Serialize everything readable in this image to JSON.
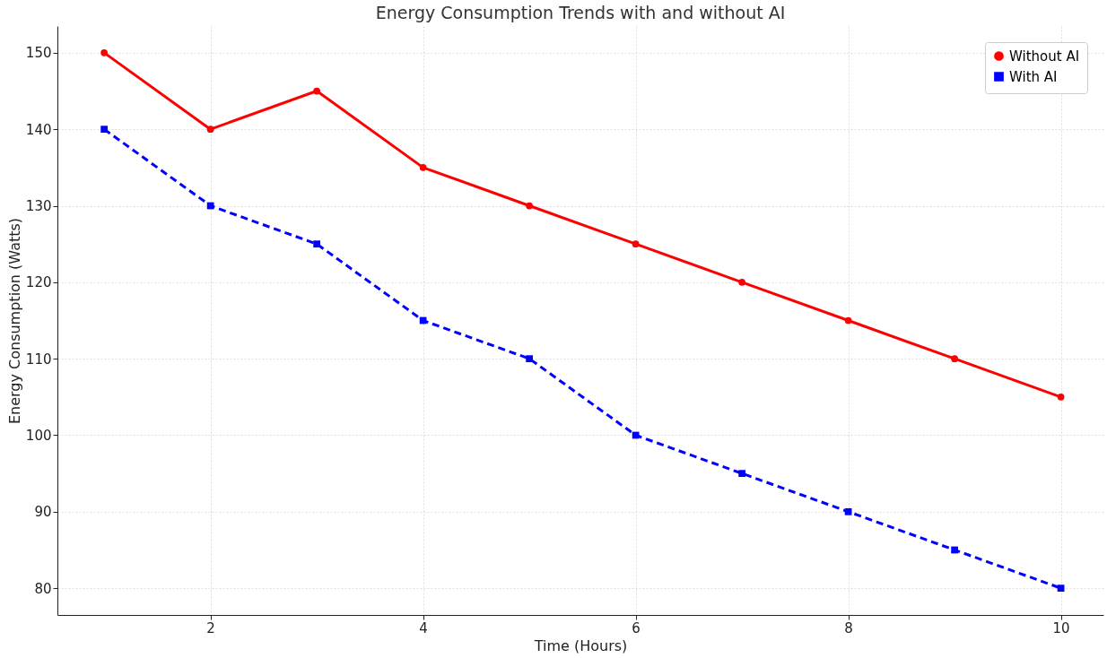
{
  "chart_data": {
    "type": "line",
    "title": "Energy Consumption Trends with and without AI",
    "xlabel": "Time (Hours)",
    "ylabel": "Energy Consumption (Watts)",
    "x": [
      1,
      2,
      3,
      4,
      5,
      6,
      7,
      8,
      9,
      10
    ],
    "series": [
      {
        "name": "Without AI",
        "color": "#ff0000",
        "marker": "circle",
        "line_style": "solid",
        "values": [
          150,
          140,
          145,
          135,
          130,
          125,
          120,
          115,
          110,
          105
        ]
      },
      {
        "name": "With AI",
        "color": "#0000ff",
        "marker": "square",
        "line_style": "dashed",
        "values": [
          140,
          130,
          125,
          115,
          110,
          100,
          95,
          90,
          85,
          80
        ]
      }
    ],
    "xlim": [
      0.56,
      10.4
    ],
    "xticks": [
      2,
      4,
      6,
      8,
      10
    ],
    "ylim": [
      76.5,
      153.5
    ],
    "yticks": [
      80,
      90,
      100,
      110,
      120,
      130,
      140,
      150
    ],
    "grid": true,
    "legend": "top right"
  }
}
